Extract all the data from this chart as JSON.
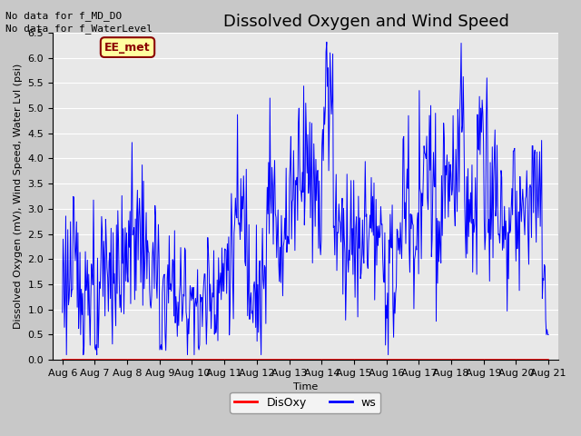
{
  "title": "Dissolved Oxygen and Wind Speed",
  "xlabel": "Time",
  "ylabel": "Dissolved Oxygen (mV), Wind Speed, Water Lvl (psi)",
  "ylim": [
    0.0,
    6.5
  ],
  "yticks": [
    0.0,
    0.5,
    1.0,
    1.5,
    2.0,
    2.5,
    3.0,
    3.5,
    4.0,
    4.5,
    5.0,
    5.5,
    6.0,
    6.5
  ],
  "xtick_labels": [
    "Aug 6",
    "Aug 7",
    "Aug 8",
    "Aug 9",
    "Aug 10",
    "Aug 11",
    "Aug 12",
    "Aug 13",
    "Aug 14",
    "Aug 15",
    "Aug 16",
    "Aug 17",
    "Aug 18",
    "Aug 19",
    "Aug 20",
    "Aug 21"
  ],
  "annotation1": "No data for f_MD_DO",
  "annotation2": "No data for f_WaterLevel",
  "ee_met_label": "EE_met",
  "legend_disoxy": "DisOxy",
  "legend_ws": "ws",
  "disoxy_color": "#ff0000",
  "ws_color": "#0000ff",
  "figure_facecolor": "#c8c8c8",
  "axes_facecolor": "#e8e8e8",
  "grid_color": "#ffffff",
  "title_fontsize": 13,
  "axis_label_fontsize": 8,
  "tick_fontsize": 8,
  "annotation_fontsize": 8
}
